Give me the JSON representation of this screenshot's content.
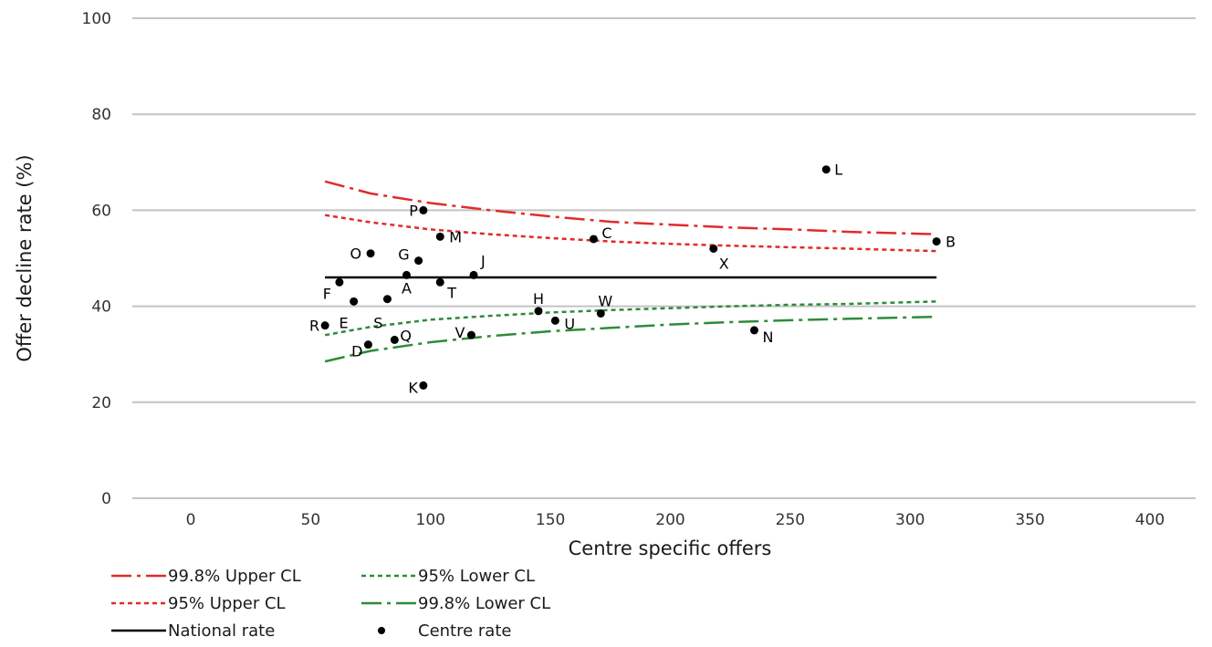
{
  "chart_data": {
    "type": "scatter",
    "xlabel": "Centre specific offers",
    "ylabel": "Offer decline rate (%)",
    "xlim": [
      -25,
      420
    ],
    "ylim": [
      0,
      100
    ],
    "x_ticks": [
      0,
      50,
      100,
      150,
      200,
      250,
      300,
      350,
      400
    ],
    "y_ticks": [
      0,
      20,
      40,
      60,
      80,
      100
    ],
    "grid": "horizontal",
    "legend_position": "bottom-left",
    "national_rate": 46,
    "series": [
      {
        "name": "Centre rate",
        "points": [
          {
            "label": "A",
            "x": 90,
            "y": 46.5
          },
          {
            "label": "B",
            "x": 311,
            "y": 53.5
          },
          {
            "label": "C",
            "x": 168,
            "y": 54
          },
          {
            "label": "D",
            "x": 74,
            "y": 32
          },
          {
            "label": "E",
            "x": 68,
            "y": 41
          },
          {
            "label": "F",
            "x": 62,
            "y": 45
          },
          {
            "label": "G",
            "x": 95,
            "y": 49.5
          },
          {
            "label": "H",
            "x": 145,
            "y": 39
          },
          {
            "label": "J",
            "x": 118,
            "y": 46.5
          },
          {
            "label": "K",
            "x": 97,
            "y": 23.5
          },
          {
            "label": "L",
            "x": 265,
            "y": 68.5
          },
          {
            "label": "M",
            "x": 104,
            "y": 54.5
          },
          {
            "label": "N",
            "x": 235,
            "y": 35
          },
          {
            "label": "O",
            "x": 75,
            "y": 51
          },
          {
            "label": "P",
            "x": 97,
            "y": 60
          },
          {
            "label": "Q",
            "x": 85,
            "y": 33
          },
          {
            "label": "R",
            "x": 56,
            "y": 36
          },
          {
            "label": "S",
            "x": 82,
            "y": 41.5
          },
          {
            "label": "T",
            "x": 104,
            "y": 45
          },
          {
            "label": "U",
            "x": 152,
            "y": 37
          },
          {
            "label": "V",
            "x": 117,
            "y": 34
          },
          {
            "label": "W",
            "x": 171,
            "y": 38.5
          },
          {
            "label": "X",
            "x": 218,
            "y": 52
          }
        ]
      },
      {
        "name": "99.8% Upper CL",
        "x": [
          56,
          75,
          100,
          125,
          150,
          175,
          200,
          225,
          250,
          275,
          311
        ],
        "y": [
          66,
          63.5,
          61.5,
          60,
          58.7,
          57.6,
          57,
          56.4,
          56,
          55.5,
          55
        ]
      },
      {
        "name": "95% Upper CL",
        "x": [
          56,
          75,
          100,
          125,
          150,
          175,
          200,
          225,
          250,
          275,
          311
        ],
        "y": [
          59,
          57.5,
          56,
          55,
          54.2,
          53.5,
          53,
          52.6,
          52.3,
          52,
          51.5
        ]
      },
      {
        "name": "National rate",
        "x": [
          56,
          311
        ],
        "y": [
          46,
          46
        ]
      },
      {
        "name": "95% Lower CL",
        "x": [
          56,
          75,
          100,
          125,
          150,
          175,
          200,
          225,
          250,
          275,
          311
        ],
        "y": [
          34,
          35.7,
          37.2,
          38,
          38.7,
          39.2,
          39.6,
          40,
          40.3,
          40.5,
          41
        ]
      },
      {
        "name": "99.8% Lower CL",
        "x": [
          56,
          75,
          100,
          125,
          150,
          175,
          200,
          225,
          250,
          275,
          311
        ],
        "y": [
          28.5,
          30.7,
          32.5,
          33.8,
          34.8,
          35.5,
          36.2,
          36.7,
          37.1,
          37.4,
          37.8
        ]
      }
    ],
    "legend": [
      {
        "label": "99.8% Upper CL",
        "style": "dash-dot",
        "color": "#e02b2b"
      },
      {
        "label": "95% Lower CL",
        "style": "dotted",
        "color": "#2e8b3a"
      },
      {
        "label": "95% Upper CL",
        "style": "dotted",
        "color": "#e02b2b"
      },
      {
        "label": "99.8% Lower CL",
        "style": "dash-dot",
        "color": "#2e8b3a"
      },
      {
        "label": "National rate",
        "style": "solid",
        "color": "#000000"
      },
      {
        "label": "Centre rate",
        "style": "marker",
        "color": "#000000"
      }
    ]
  }
}
